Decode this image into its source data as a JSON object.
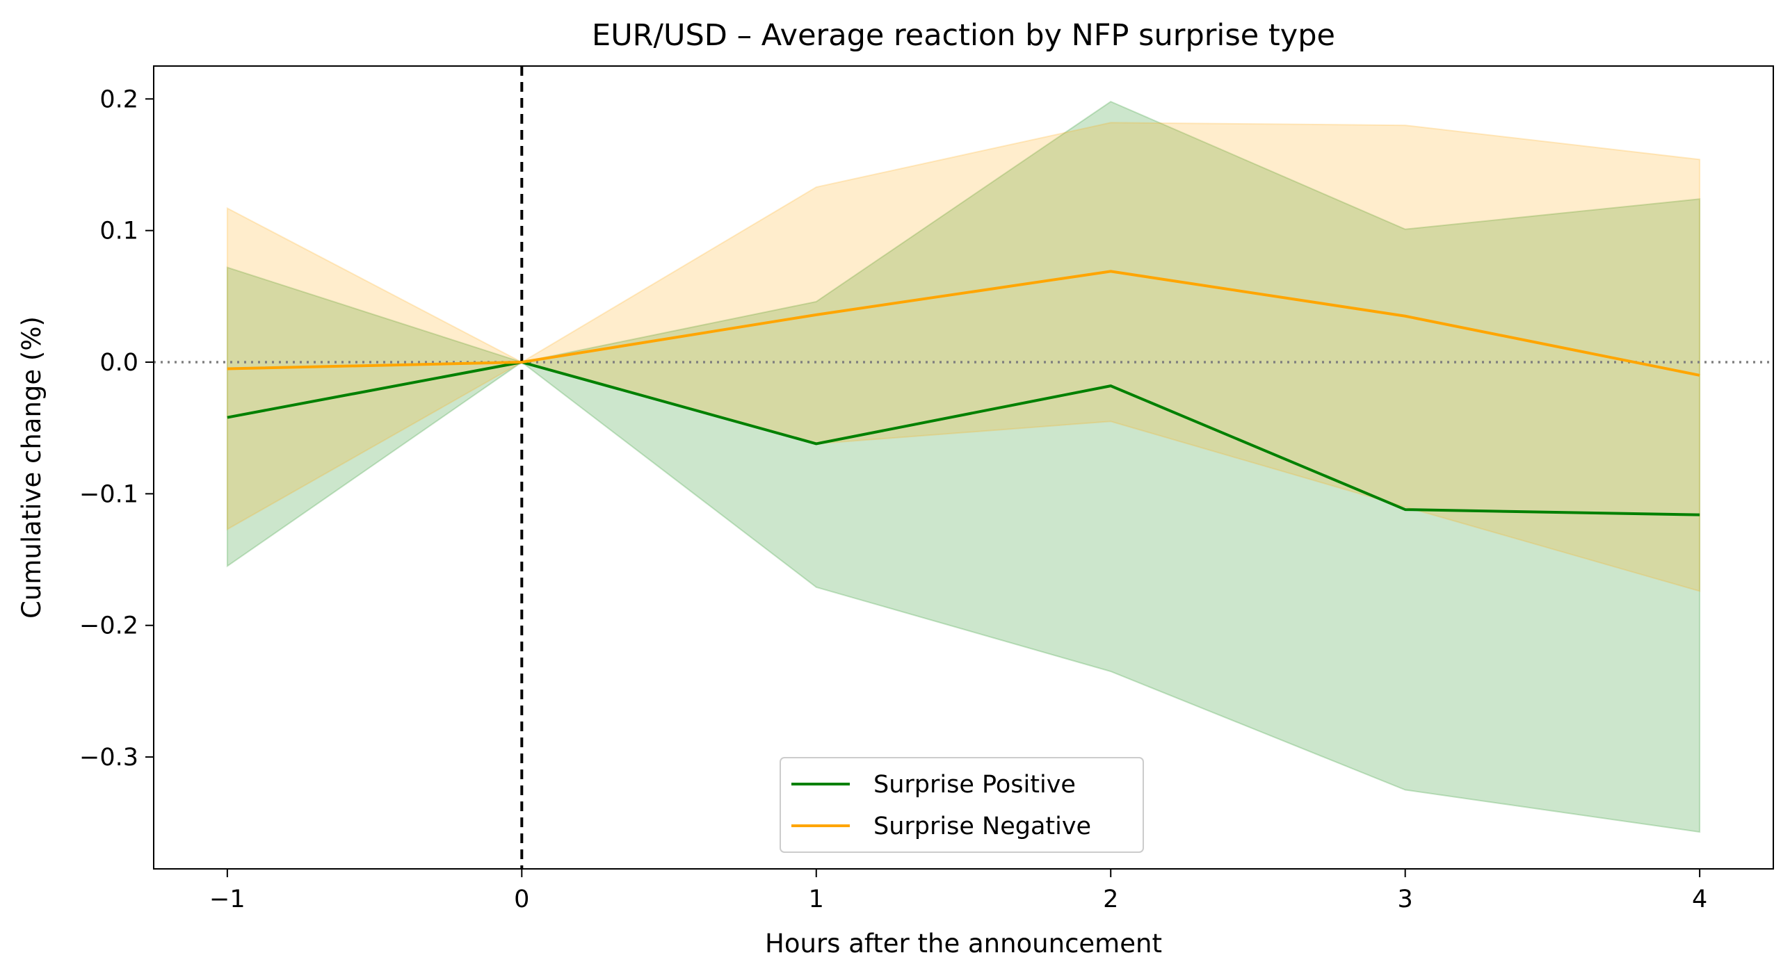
{
  "chart_data": {
    "type": "line",
    "title": "EUR/USD – Average reaction by NFP surprise type",
    "xlabel": "Hours after the announcement",
    "ylabel": "Cumulative change (%)",
    "x": [
      -1,
      0,
      1,
      2,
      3,
      4
    ],
    "x_ticks": [
      -1,
      0,
      1,
      2,
      3,
      4
    ],
    "x_tick_labels": [
      "−1",
      "0",
      "1",
      "2",
      "3",
      "4"
    ],
    "y_ticks": [
      -0.3,
      -0.2,
      -0.1,
      0.0,
      0.1,
      0.2
    ],
    "y_tick_labels": [
      "−0.3",
      "−0.2",
      "−0.1",
      "0.0",
      "0.1",
      "0.2"
    ],
    "xlim": [
      -1.25,
      4.25
    ],
    "ylim": [
      -0.385,
      0.225
    ],
    "grid": false,
    "legend_position": "lower-center",
    "vertical_reference_x": 0,
    "horizontal_reference_y": 0,
    "series": [
      {
        "name": "Surprise Positive",
        "color": "#008000",
        "values": [
          -0.042,
          0.0,
          -0.062,
          -0.018,
          -0.112,
          -0.116
        ],
        "band_upper": [
          0.072,
          0.0,
          0.046,
          0.198,
          0.101,
          0.124
        ],
        "band_lower": [
          -0.155,
          0.0,
          -0.171,
          -0.235,
          -0.325,
          -0.357
        ]
      },
      {
        "name": "Surprise Negative",
        "color": "#FFA500",
        "values": [
          -0.005,
          0.0,
          0.036,
          0.069,
          0.035,
          -0.01
        ],
        "band_upper": [
          0.117,
          0.0,
          0.133,
          0.182,
          0.18,
          0.154
        ],
        "band_lower": [
          -0.127,
          0.0,
          -0.062,
          -0.045,
          -0.11,
          -0.174
        ]
      }
    ]
  }
}
